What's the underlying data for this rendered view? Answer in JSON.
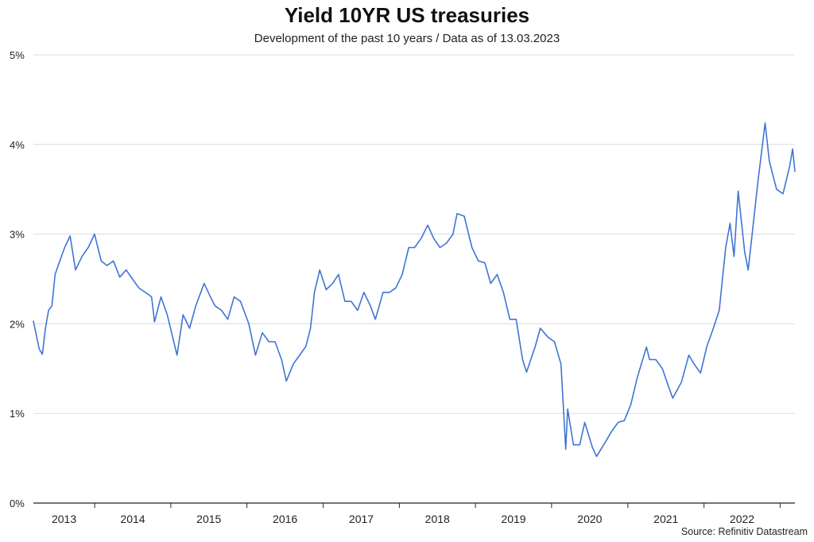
{
  "title": "Yield 10YR US treasuries",
  "subtitle": "Development of the past 10 years / Data as of 13.03.2023",
  "source": "Source: Refinitiv Datastream",
  "colors": {
    "line": "#3f74d6",
    "grid": "#dcdcdc",
    "axis": "#222222"
  },
  "chart_data": {
    "type": "line",
    "title": "Yield 10YR US treasuries",
    "subtitle": "Development of the past 10 years / Data as of 13.03.2023",
    "xlabel": "",
    "ylabel": "",
    "ylim": [
      0,
      5
    ],
    "xlim": [
      "2013-03-13",
      "2023-03-13"
    ],
    "yticks": [
      "0%",
      "1%",
      "2%",
      "3%",
      "4%",
      "5%"
    ],
    "xticks": [
      "2013",
      "2014",
      "2015",
      "2016",
      "2017",
      "2018",
      "2019",
      "2020",
      "2021",
      "2022"
    ],
    "grid": true,
    "legend": "none",
    "series": [
      {
        "x": [
          "2013-03-13",
          "2013-04-10",
          "2013-04-25",
          "2013-05-10",
          "2013-05-25",
          "2013-06-10",
          "2013-06-25",
          "2013-07-10",
          "2013-08-10",
          "2013-09-05",
          "2013-10-01",
          "2013-11-01",
          "2013-12-01",
          "2013-12-31",
          "2014-02-01",
          "2014-03-01",
          "2014-04-01",
          "2014-05-01",
          "2014-06-01",
          "2014-07-01",
          "2014-08-01",
          "2014-09-01",
          "2014-10-01",
          "2014-10-15",
          "2014-11-15",
          "2014-12-15",
          "2015-01-31",
          "2015-03-01",
          "2015-04-01",
          "2015-05-01",
          "2015-06-10",
          "2015-07-10",
          "2015-08-01",
          "2015-09-01",
          "2015-10-01",
          "2015-11-01",
          "2015-12-01",
          "2016-01-10",
          "2016-02-11",
          "2016-03-15",
          "2016-04-15",
          "2016-05-15",
          "2016-06-15",
          "2016-07-08",
          "2016-08-10",
          "2016-09-10",
          "2016-10-10",
          "2016-11-01",
          "2016-11-20",
          "2016-12-15",
          "2017-01-15",
          "2017-02-15",
          "2017-03-15",
          "2017-04-15",
          "2017-05-15",
          "2017-06-15",
          "2017-07-15",
          "2017-08-15",
          "2017-09-08",
          "2017-10-15",
          "2017-11-15",
          "2017-12-15",
          "2018-01-15",
          "2018-02-15",
          "2018-03-15",
          "2018-04-15",
          "2018-05-17",
          "2018-06-15",
          "2018-07-15",
          "2018-08-15",
          "2018-09-15",
          "2018-10-05",
          "2018-11-08",
          "2018-12-15",
          "2019-01-15",
          "2019-02-15",
          "2019-03-15",
          "2019-04-15",
          "2019-05-15",
          "2019-06-15",
          "2019-07-15",
          "2019-08-15",
          "2019-09-03",
          "2019-10-15",
          "2019-11-08",
          "2019-12-15",
          "2020-01-15",
          "2020-02-15",
          "2020-03-09",
          "2020-03-18",
          "2020-04-15",
          "2020-05-15",
          "2020-06-08",
          "2020-07-15",
          "2020-08-04",
          "2020-09-15",
          "2020-10-15",
          "2020-11-15",
          "2020-12-15",
          "2021-01-15",
          "2021-02-15",
          "2021-03-31",
          "2021-04-15",
          "2021-05-15",
          "2021-06-15",
          "2021-07-15",
          "2021-08-04",
          "2021-09-15",
          "2021-10-20",
          "2021-11-15",
          "2021-12-15",
          "2022-01-15",
          "2022-02-15",
          "2022-03-15",
          "2022-04-15",
          "2022-05-06",
          "2022-05-25",
          "2022-06-14",
          "2022-07-15",
          "2022-08-01",
          "2022-08-20",
          "2022-09-15",
          "2022-10-21",
          "2022-11-10",
          "2022-11-25",
          "2022-12-15",
          "2023-01-15",
          "2023-02-15",
          "2023-03-02",
          "2023-03-13"
        ],
        "y": [
          2.03,
          1.72,
          1.66,
          1.95,
          2.15,
          2.2,
          2.55,
          2.65,
          2.85,
          2.98,
          2.6,
          2.75,
          2.85,
          3.0,
          2.7,
          2.65,
          2.7,
          2.52,
          2.6,
          2.5,
          2.4,
          2.35,
          2.3,
          2.02,
          2.3,
          2.1,
          1.65,
          2.1,
          1.95,
          2.2,
          2.45,
          2.3,
          2.2,
          2.15,
          2.05,
          2.3,
          2.25,
          2.0,
          1.65,
          1.9,
          1.8,
          1.8,
          1.6,
          1.36,
          1.55,
          1.65,
          1.75,
          1.95,
          2.35,
          2.6,
          2.38,
          2.45,
          2.55,
          2.25,
          2.25,
          2.15,
          2.35,
          2.2,
          2.05,
          2.35,
          2.35,
          2.4,
          2.55,
          2.85,
          2.85,
          2.95,
          3.1,
          2.95,
          2.85,
          2.9,
          3.0,
          3.23,
          3.2,
          2.85,
          2.7,
          2.68,
          2.45,
          2.55,
          2.35,
          2.05,
          2.05,
          1.6,
          1.46,
          1.75,
          1.95,
          1.85,
          1.8,
          1.55,
          0.6,
          1.05,
          0.65,
          0.65,
          0.9,
          0.62,
          0.52,
          0.68,
          0.8,
          0.9,
          0.92,
          1.1,
          1.4,
          1.74,
          1.6,
          1.6,
          1.5,
          1.3,
          1.17,
          1.35,
          1.65,
          1.55,
          1.45,
          1.75,
          1.95,
          2.15,
          2.85,
          3.12,
          2.75,
          3.48,
          2.8,
          2.6,
          3.0,
          3.55,
          4.24,
          3.82,
          3.68,
          3.5,
          3.45,
          3.75,
          3.95,
          3.7
        ]
      }
    ]
  }
}
